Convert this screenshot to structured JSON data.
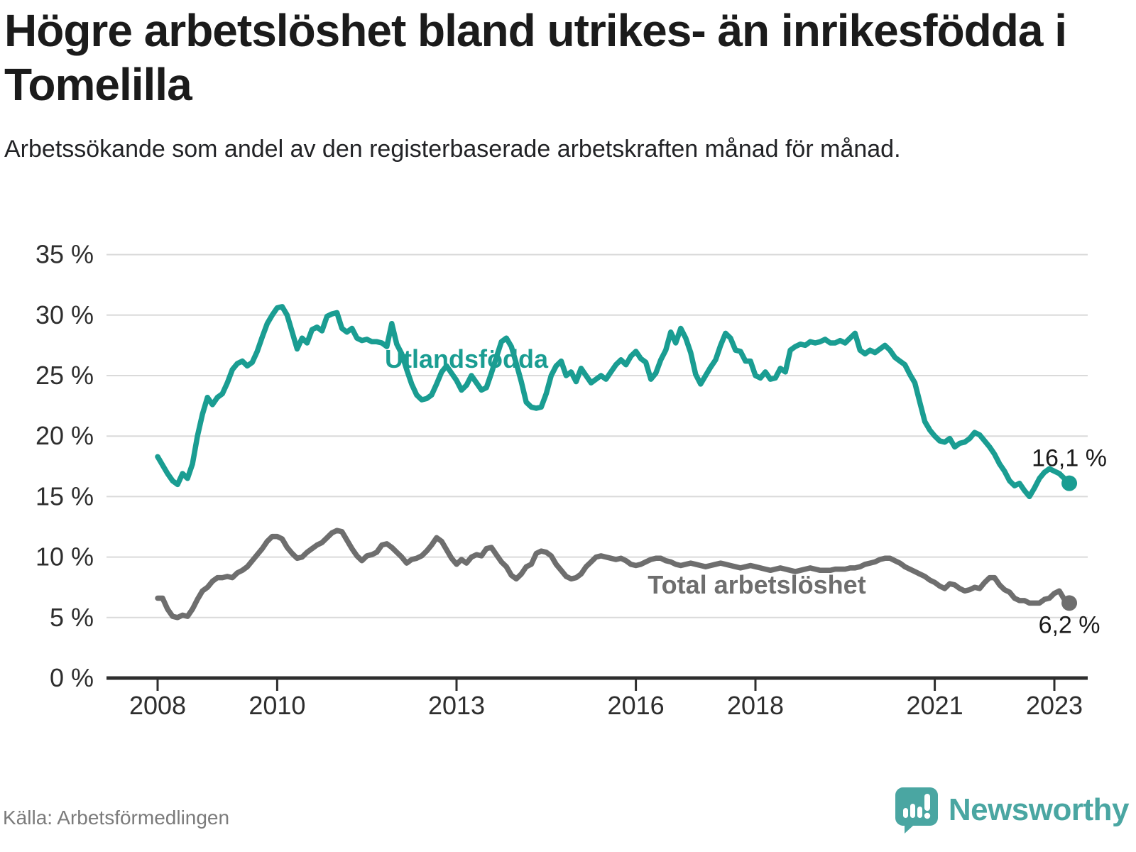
{
  "header": {
    "title": "Högre arbetslöshet bland utrikes- än inrikesfödda i Tomelilla",
    "subtitle": "Arbetssökande som andel av den registerbaserade arbetskraften månad för månad."
  },
  "footer": {
    "source": "Källa: Arbetsförmedlingen",
    "brand": "Newsworthy"
  },
  "colors": {
    "foreign_born_line": "#1a9d92",
    "total_line": "#6e6e6e",
    "gridline": "#dadada",
    "axis": "#2e2e2e",
    "value_label": "#1a1a1a",
    "brand_teal": "#4aa6a2"
  },
  "chart_data": {
    "type": "line",
    "title": "Högre arbetslöshet bland utrikes- än inrikesfödda i Tomelilla",
    "subtitle": "Arbetssökande som andel av den registerbaserade arbetskraften månad för månad.",
    "frequency": "monthly",
    "start": {
      "year": 2008,
      "month": 1
    },
    "end": {
      "year": 2023,
      "month": 4
    },
    "ylim": [
      0,
      35
    ],
    "grid": "horizontal",
    "legend_position": "inline-labels",
    "y_ticks": [
      {
        "label": "0 %",
        "value": 0
      },
      {
        "label": "5 %",
        "value": 5
      },
      {
        "label": "10 %",
        "value": 10
      },
      {
        "label": "15 %",
        "value": 15
      },
      {
        "label": "20 %",
        "value": 20
      },
      {
        "label": "25 %",
        "value": 25
      },
      {
        "label": "30 %",
        "value": 30
      },
      {
        "label": "35 %",
        "value": 35
      }
    ],
    "x_ticks": [
      {
        "label": "2008",
        "year": 2008
      },
      {
        "label": "2010",
        "year": 2010
      },
      {
        "label": "2013",
        "year": 2013
      },
      {
        "label": "2016",
        "year": 2016
      },
      {
        "label": "2018",
        "year": 2018
      },
      {
        "label": "2021",
        "year": 2021
      },
      {
        "label": "2023",
        "year": 2023
      }
    ],
    "series": [
      {
        "name": "Utlandsfödda",
        "color": "#1a9d92",
        "end_value": 16.1,
        "end_label": "16,1 %",
        "values": [
          18.3,
          17.6,
          16.9,
          16.3,
          16.0,
          16.9,
          16.5,
          17.7,
          20.0,
          21.8,
          23.2,
          22.6,
          23.2,
          23.5,
          24.4,
          25.5,
          26.0,
          26.2,
          25.8,
          26.1,
          27.0,
          28.2,
          29.3,
          30.0,
          30.6,
          30.7,
          30.0,
          28.6,
          27.2,
          28.1,
          27.7,
          28.8,
          29.0,
          28.7,
          29.9,
          30.1,
          30.2,
          28.9,
          28.6,
          28.9,
          28.1,
          27.9,
          28.0,
          27.8,
          27.8,
          27.7,
          27.4,
          29.3,
          27.6,
          26.8,
          25.5,
          24.3,
          23.4,
          23.0,
          23.1,
          23.4,
          24.3,
          25.3,
          25.8,
          25.2,
          24.6,
          23.8,
          24.2,
          25.0,
          24.4,
          23.8,
          24.0,
          25.2,
          26.5,
          27.8,
          28.1,
          27.4,
          26.0,
          24.5,
          22.8,
          22.4,
          22.3,
          22.4,
          23.5,
          25.0,
          25.8,
          26.2,
          25.0,
          25.3,
          24.5,
          25.6,
          25.0,
          24.4,
          24.7,
          25.0,
          24.7,
          25.3,
          25.9,
          26.3,
          25.9,
          26.6,
          27.0,
          26.4,
          26.1,
          24.7,
          25.2,
          26.3,
          27.1,
          28.6,
          27.7,
          28.9,
          28.1,
          26.9,
          25.1,
          24.3,
          25.0,
          25.7,
          26.3,
          27.5,
          28.5,
          28.1,
          27.1,
          27.0,
          26.2,
          26.2,
          25.0,
          24.8,
          25.3,
          24.7,
          24.8,
          25.6,
          25.3,
          27.1,
          27.4,
          27.6,
          27.5,
          27.8,
          27.7,
          27.8,
          28.0,
          27.7,
          27.7,
          27.9,
          27.7,
          28.1,
          28.5,
          27.1,
          26.8,
          27.1,
          26.9,
          27.2,
          27.5,
          27.1,
          26.5,
          26.2,
          25.9,
          25.1,
          24.4,
          22.8,
          21.2,
          20.5,
          20.0,
          19.6,
          19.5,
          19.8,
          19.1,
          19.4,
          19.5,
          19.8,
          20.3,
          20.1,
          19.6,
          19.1,
          18.5,
          17.7,
          17.1,
          16.3,
          15.9,
          16.1,
          15.5,
          15.0,
          15.7,
          16.5,
          17.0,
          17.3,
          17.1,
          16.9,
          16.5,
          16.1
        ]
      },
      {
        "name": "Total arbetslöshet",
        "color": "#6e6e6e",
        "end_value": 6.2,
        "end_label": "6,2 %",
        "values": [
          6.6,
          6.6,
          5.7,
          5.1,
          5.0,
          5.2,
          5.1,
          5.7,
          6.5,
          7.2,
          7.5,
          8.0,
          8.3,
          8.3,
          8.4,
          8.3,
          8.7,
          8.9,
          9.2,
          9.7,
          10.2,
          10.7,
          11.3,
          11.7,
          11.7,
          11.5,
          10.8,
          10.3,
          9.9,
          10.0,
          10.4,
          10.7,
          11.0,
          11.2,
          11.6,
          12.0,
          12.2,
          12.1,
          11.4,
          10.7,
          10.1,
          9.7,
          10.1,
          10.2,
          10.4,
          11.0,
          11.1,
          10.8,
          10.4,
          10.0,
          9.5,
          9.8,
          9.9,
          10.1,
          10.5,
          11.0,
          11.6,
          11.3,
          10.6,
          9.9,
          9.4,
          9.8,
          9.5,
          10.0,
          10.2,
          10.1,
          10.7,
          10.8,
          10.2,
          9.6,
          9.2,
          8.5,
          8.2,
          8.6,
          9.2,
          9.4,
          10.3,
          10.5,
          10.4,
          10.1,
          9.4,
          8.9,
          8.4,
          8.2,
          8.3,
          8.6,
          9.2,
          9.6,
          10.0,
          10.1,
          10.0,
          9.9,
          9.8,
          9.9,
          9.7,
          9.4,
          9.3,
          9.4,
          9.6,
          9.8,
          9.9,
          9.9,
          9.7,
          9.6,
          9.4,
          9.3,
          9.4,
          9.5,
          9.4,
          9.3,
          9.2,
          9.3,
          9.4,
          9.5,
          9.4,
          9.3,
          9.2,
          9.1,
          9.2,
          9.3,
          9.2,
          9.1,
          9.0,
          8.9,
          9.0,
          9.1,
          9.0,
          8.9,
          8.8,
          8.9,
          9.0,
          9.1,
          9.0,
          8.9,
          8.9,
          8.9,
          9.0,
          9.0,
          9.0,
          9.1,
          9.1,
          9.2,
          9.4,
          9.5,
          9.6,
          9.8,
          9.9,
          9.9,
          9.7,
          9.5,
          9.2,
          9.0,
          8.8,
          8.6,
          8.4,
          8.1,
          7.9,
          7.6,
          7.4,
          7.8,
          7.7,
          7.4,
          7.2,
          7.3,
          7.5,
          7.4,
          7.9,
          8.3,
          8.3,
          7.7,
          7.3,
          7.1,
          6.6,
          6.4,
          6.4,
          6.2,
          6.2,
          6.2,
          6.5,
          6.6,
          7.0,
          7.2,
          6.5,
          6.2
        ]
      }
    ]
  }
}
